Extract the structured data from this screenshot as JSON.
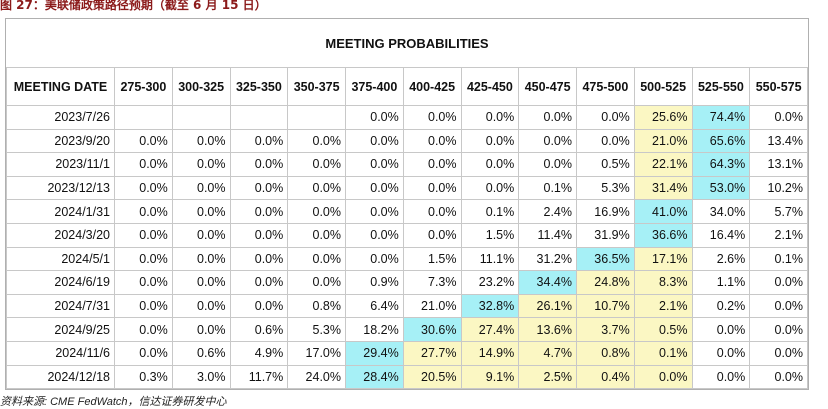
{
  "caption": "图 27：美联储政策路径预期（截至 6 月 15 日）",
  "table": {
    "title": "MEETING PROBABILITIES",
    "columns": [
      "MEETING DATE",
      "275-300",
      "300-325",
      "325-350",
      "350-375",
      "375-400",
      "400-425",
      "425-450",
      "450-475",
      "475-500",
      "500-525",
      "525-550",
      "550-575"
    ],
    "max_color": "#a6f0f6",
    "range_color": "#fbf7c3",
    "rows": [
      {
        "cells": [
          "2023/7/26",
          null,
          null,
          null,
          null,
          "0.0%",
          "0.0%",
          "0.0%",
          "0.0%",
          "0.0%",
          "25.6%",
          "74.4%",
          "0.0%"
        ],
        "max": 11,
        "range": [
          10
        ]
      },
      {
        "cells": [
          "2023/9/20",
          "0.0%",
          "0.0%",
          "0.0%",
          "0.0%",
          "0.0%",
          "0.0%",
          "0.0%",
          "0.0%",
          "0.0%",
          "21.0%",
          "65.6%",
          "13.4%"
        ],
        "max": 11,
        "range": [
          10
        ]
      },
      {
        "cells": [
          "2023/11/1",
          "0.0%",
          "0.0%",
          "0.0%",
          "0.0%",
          "0.0%",
          "0.0%",
          "0.0%",
          "0.0%",
          "0.5%",
          "22.1%",
          "64.3%",
          "13.1%"
        ],
        "max": 11,
        "range": [
          10
        ]
      },
      {
        "cells": [
          "2023/12/13",
          "0.0%",
          "0.0%",
          "0.0%",
          "0.0%",
          "0.0%",
          "0.0%",
          "0.0%",
          "0.1%",
          "5.3%",
          "31.4%",
          "53.0%",
          "10.2%"
        ],
        "max": 11,
        "range": [
          10
        ]
      },
      {
        "cells": [
          "2024/1/31",
          "0.0%",
          "0.0%",
          "0.0%",
          "0.0%",
          "0.0%",
          "0.0%",
          "0.1%",
          "2.4%",
          "16.9%",
          "41.0%",
          "34.0%",
          "5.7%"
        ],
        "max": 10,
        "range": []
      },
      {
        "cells": [
          "2024/3/20",
          "0.0%",
          "0.0%",
          "0.0%",
          "0.0%",
          "0.0%",
          "0.0%",
          "1.5%",
          "11.4%",
          "31.9%",
          "36.6%",
          "16.4%",
          "2.1%"
        ],
        "max": 10,
        "range": []
      },
      {
        "cells": [
          "2024/5/1",
          "0.0%",
          "0.0%",
          "0.0%",
          "0.0%",
          "0.0%",
          "1.5%",
          "11.1%",
          "31.2%",
          "36.5%",
          "17.1%",
          "2.6%",
          "0.1%"
        ],
        "max": 9,
        "range": [
          10
        ]
      },
      {
        "cells": [
          "2024/6/19",
          "0.0%",
          "0.0%",
          "0.0%",
          "0.0%",
          "0.9%",
          "7.3%",
          "23.2%",
          "34.4%",
          "24.8%",
          "8.3%",
          "1.1%",
          "0.0%"
        ],
        "max": 8,
        "range": [
          9,
          10
        ]
      },
      {
        "cells": [
          "2024/7/31",
          "0.0%",
          "0.0%",
          "0.0%",
          "0.8%",
          "6.4%",
          "21.0%",
          "32.8%",
          "26.1%",
          "10.7%",
          "2.1%",
          "0.2%",
          "0.0%"
        ],
        "max": 7,
        "range": [
          8,
          9,
          10
        ]
      },
      {
        "cells": [
          "2024/9/25",
          "0.0%",
          "0.0%",
          "0.6%",
          "5.3%",
          "18.2%",
          "30.6%",
          "27.4%",
          "13.6%",
          "3.7%",
          "0.5%",
          "0.0%",
          "0.0%"
        ],
        "max": 6,
        "range": [
          7,
          8,
          9,
          10
        ]
      },
      {
        "cells": [
          "2024/11/6",
          "0.0%",
          "0.6%",
          "4.9%",
          "17.0%",
          "29.4%",
          "27.7%",
          "14.9%",
          "4.7%",
          "0.8%",
          "0.1%",
          "0.0%",
          "0.0%"
        ],
        "max": 5,
        "range": [
          6,
          7,
          8,
          9,
          10
        ]
      },
      {
        "cells": [
          "2024/12/18",
          "0.3%",
          "3.0%",
          "11.7%",
          "24.0%",
          "28.4%",
          "20.5%",
          "9.1%",
          "2.5%",
          "0.4%",
          "0.0%",
          "0.0%",
          "0.0%"
        ],
        "max": 5,
        "range": [
          6,
          7,
          8,
          9,
          10
        ]
      }
    ]
  },
  "source": "资料来源: CME FedWatch，信达证券研发中心"
}
